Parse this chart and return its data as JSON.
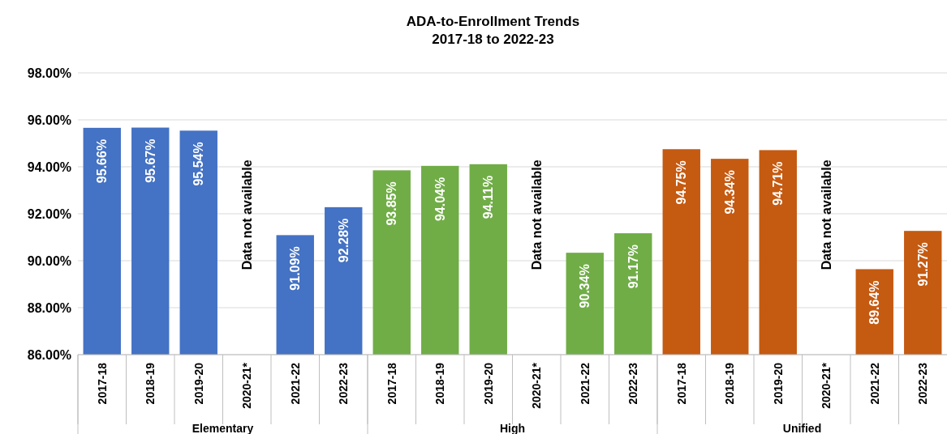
{
  "chart_data": {
    "type": "bar",
    "title": "ADA-to-Enrollment Trends",
    "subtitle": "2017-18 to 2022-23",
    "categories": [
      "2017-18",
      "2018-19",
      "2019-20",
      "2020-21*",
      "2021-22",
      "2022-23",
      "2017-18",
      "2018-19",
      "2019-20",
      "2020-21*",
      "2021-22",
      "2022-23",
      "2017-18",
      "2018-19",
      "2019-20",
      "2020-21*",
      "2021-22",
      "2022-23"
    ],
    "values": [
      95.66,
      95.67,
      95.54,
      null,
      91.09,
      92.28,
      93.85,
      94.04,
      94.11,
      null,
      90.34,
      91.17,
      94.75,
      94.34,
      94.71,
      null,
      89.64,
      91.27
    ],
    "colors": [
      "#4472c4",
      "#4472c4",
      "#4472c4",
      "#4472c4",
      "#4472c4",
      "#4472c4",
      "#70ad47",
      "#70ad47",
      "#70ad47",
      "#70ad47",
      "#70ad47",
      "#70ad47",
      "#c55a11",
      "#c55a11",
      "#c55a11",
      "#c55a11",
      "#c55a11",
      "#c55a11"
    ],
    "value_labels": [
      "95.66%",
      "95.67%",
      "95.54%",
      "Data not available",
      "91.09%",
      "92.28%",
      "93.85%",
      "94.04%",
      "94.11%",
      "Data not available",
      "90.34%",
      "91.17%",
      "94.75%",
      "94.34%",
      "94.71%",
      "Data not available",
      "89.64%",
      "91.27%"
    ],
    "annotations": [
      "Elementary",
      "High",
      "Unified"
    ],
    "ylim": [
      86,
      98
    ],
    "yticks": [
      {
        "value": 86,
        "label": "86.00%"
      },
      {
        "value": 88,
        "label": "88.00%"
      },
      {
        "value": 90,
        "label": "90.00%"
      },
      {
        "value": 92,
        "label": "92.00%"
      },
      {
        "value": 94,
        "label": "94.00%"
      },
      {
        "value": 96,
        "label": "96.00%"
      },
      {
        "value": 98,
        "label": "98.00%"
      }
    ],
    "grid": "y"
  }
}
